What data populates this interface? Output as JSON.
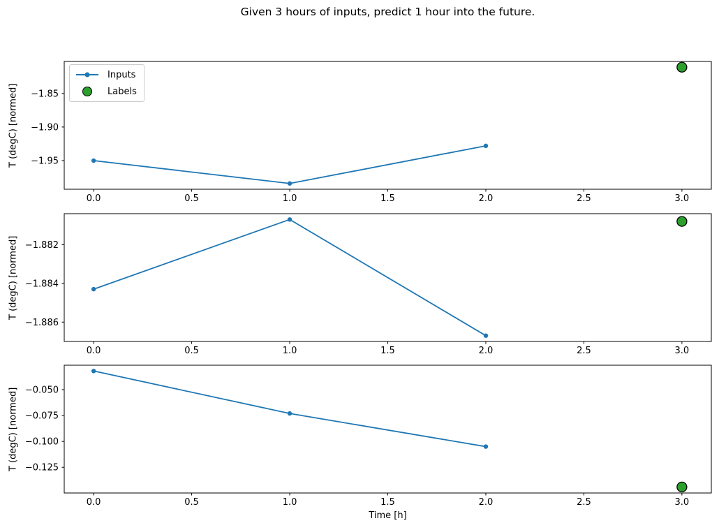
{
  "figure": {
    "title": "Given 3 hours of inputs, predict 1 hour into the future.",
    "background_color": "#ffffff",
    "text_color": "#000000",
    "spine_color": "#000000"
  },
  "legend": {
    "position": "upper left of subplot 1",
    "items": [
      {
        "label": "Inputs",
        "marker": "line-with-dot",
        "color": "#1f77b4"
      },
      {
        "label": "Labels",
        "marker": "filled-circle",
        "color": "#2ca02c",
        "edge_color": "#000000"
      }
    ]
  },
  "chart_data": [
    {
      "type": "line",
      "ylabel": "T (degC) [normed]",
      "xlabel": "",
      "x": [
        0,
        1,
        2
      ],
      "series": [
        {
          "name": "Inputs",
          "values": [
            -1.95,
            -1.984,
            -1.928
          ],
          "color": "#1f77b4"
        }
      ],
      "label_point": {
        "name": "Labels",
        "x": 3.0,
        "y": -1.811,
        "color": "#2ca02c",
        "edge_color": "#000000"
      },
      "xlim": [
        -0.15,
        3.15
      ],
      "ylim": [
        -1.9926,
        -1.8024
      ],
      "xticks": [
        0.0,
        0.5,
        1.0,
        1.5,
        2.0,
        2.5,
        3.0
      ],
      "xtick_labels": [
        "0.0",
        "0.5",
        "1.0",
        "1.5",
        "2.0",
        "2.5",
        "3.0"
      ],
      "yticks": [
        -1.85,
        -1.9,
        -1.95
      ],
      "ytick_labels": [
        "−1.85",
        "−1.90",
        "−1.95"
      ],
      "grid": false,
      "legend_visible": true
    },
    {
      "type": "line",
      "ylabel": "T (degC) [normed]",
      "xlabel": "",
      "x": [
        0,
        1,
        2
      ],
      "series": [
        {
          "name": "Inputs",
          "values": [
            -1.8843,
            -1.8807,
            -1.8867
          ],
          "color": "#1f77b4"
        }
      ],
      "label_point": {
        "name": "Labels",
        "x": 3.0,
        "y": -1.8808,
        "color": "#2ca02c",
        "edge_color": "#000000"
      },
      "xlim": [
        -0.15,
        3.15
      ],
      "ylim": [
        -1.887,
        -1.8804
      ],
      "xticks": [
        0.0,
        0.5,
        1.0,
        1.5,
        2.0,
        2.5,
        3.0
      ],
      "xtick_labels": [
        "0.0",
        "0.5",
        "1.0",
        "1.5",
        "2.0",
        "2.5",
        "3.0"
      ],
      "yticks": [
        -1.882,
        -1.884,
        -1.886
      ],
      "ytick_labels": [
        "−1.882",
        "−1.884",
        "−1.886"
      ],
      "grid": false,
      "legend_visible": false
    },
    {
      "type": "line",
      "ylabel": "T (degC) [normed]",
      "xlabel": "Time [h]",
      "x": [
        0,
        1,
        2
      ],
      "series": [
        {
          "name": "Inputs",
          "values": [
            -0.032,
            -0.073,
            -0.105
          ],
          "color": "#1f77b4"
        }
      ],
      "label_point": {
        "name": "Labels",
        "x": 3.0,
        "y": -0.144,
        "color": "#2ca02c",
        "edge_color": "#000000"
      },
      "xlim": [
        -0.15,
        3.15
      ],
      "ylim": [
        -0.1498,
        -0.0264
      ],
      "xticks": [
        0.0,
        0.5,
        1.0,
        1.5,
        2.0,
        2.5,
        3.0
      ],
      "xtick_labels": [
        "0.0",
        "0.5",
        "1.0",
        "1.5",
        "2.0",
        "2.5",
        "3.0"
      ],
      "yticks": [
        -0.05,
        -0.075,
        -0.1,
        -0.125
      ],
      "ytick_labels": [
        "−0.050",
        "−0.075",
        "−0.100",
        "−0.125"
      ],
      "grid": false,
      "legend_visible": false
    }
  ]
}
